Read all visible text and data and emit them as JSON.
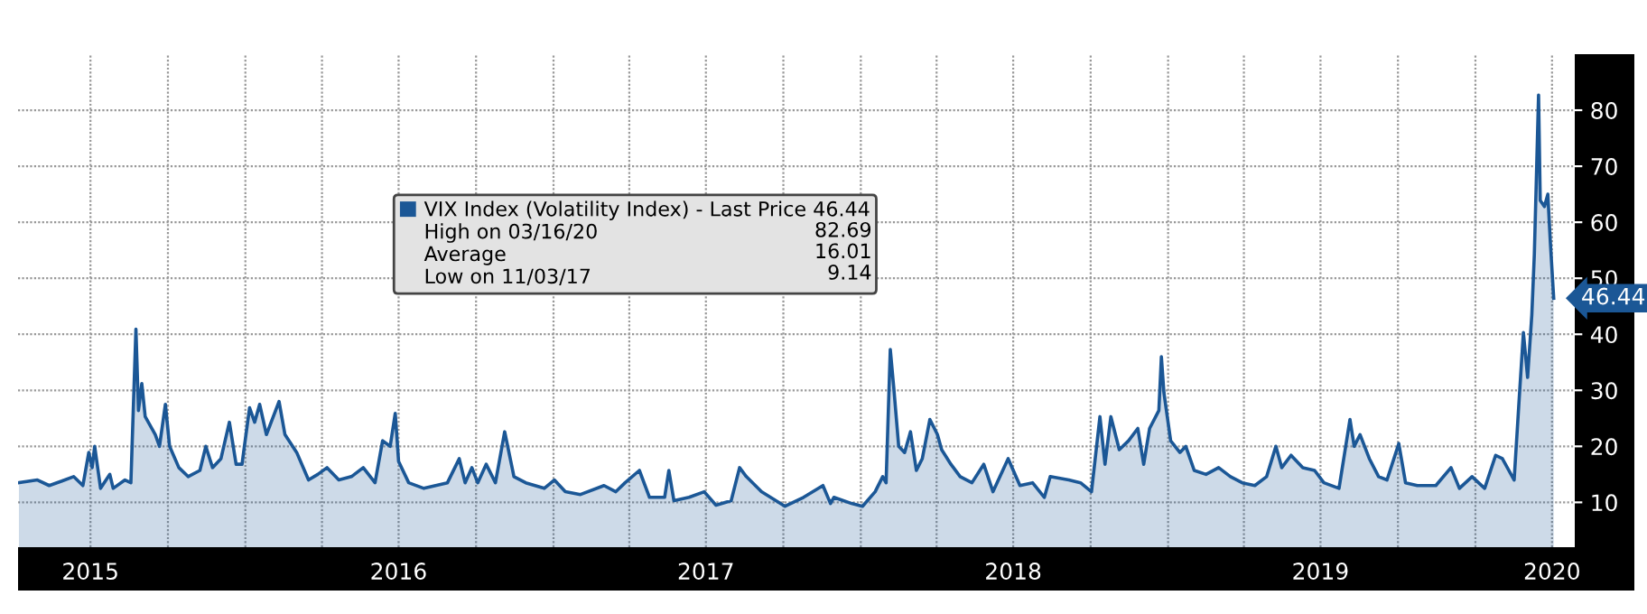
{
  "chart_data": {
    "type": "area",
    "series": [
      {
        "name": "VIX Index (Volatility Index) - Last Price 46.44",
        "color": "#1b5796",
        "x": [
          "2015-04-07",
          "2015-04-29",
          "2015-05-13",
          "2015-05-28",
          "2015-06-11",
          "2015-06-22",
          "2015-06-29",
          "2015-07-03",
          "2015-07-06",
          "2015-07-13",
          "2015-07-24",
          "2015-07-28",
          "2015-08-11",
          "2015-08-18",
          "2015-08-24",
          "2015-08-27",
          "2015-08-31",
          "2015-09-04",
          "2015-09-16",
          "2015-09-21",
          "2015-09-28",
          "2015-10-03",
          "2015-10-14",
          "2015-10-25",
          "2015-11-08",
          "2015-11-15",
          "2015-11-23",
          "2015-12-03",
          "2015-12-13",
          "2015-12-21",
          "2015-12-28",
          "2016-01-06",
          "2016-01-12",
          "2016-01-18",
          "2016-01-26",
          "2016-02-10",
          "2016-02-17",
          "2016-03-02",
          "2016-03-16",
          "2016-03-27",
          "2016-04-07",
          "2016-04-21",
          "2016-05-06",
          "2016-05-20",
          "2016-06-03",
          "2016-06-12",
          "2016-06-21",
          "2016-06-27",
          "2016-07-01",
          "2016-07-13",
          "2016-07-31",
          "2016-08-14",
          "2016-08-28",
          "2016-09-11",
          "2016-09-18",
          "2016-09-26",
          "2016-10-03",
          "2016-10-13",
          "2016-10-24",
          "2016-11-04",
          "2016-11-15",
          "2016-11-29",
          "2016-12-21",
          "2017-01-02",
          "2017-01-15",
          "2017-02-02",
          "2017-03-02",
          "2017-03-16",
          "2017-03-27",
          "2017-04-13",
          "2017-04-25",
          "2017-05-13",
          "2017-05-18",
          "2017-05-24",
          "2017-06-11",
          "2017-06-29",
          "2017-07-13",
          "2017-07-31",
          "2017-08-10",
          "2017-08-18",
          "2017-09-05",
          "2017-10-03",
          "2017-10-25",
          "2017-11-17",
          "2017-11-26",
          "2017-11-30",
          "2017-12-21",
          "2018-01-03",
          "2018-01-18",
          "2018-01-27",
          "2018-01-31",
          "2018-02-05",
          "2018-02-09",
          "2018-02-15",
          "2018-02-22",
          "2018-03-01",
          "2018-03-08",
          "2018-03-15",
          "2018-03-24",
          "2018-04-02",
          "2018-04-07",
          "2018-04-18",
          "2018-04-29",
          "2018-05-13",
          "2018-05-27",
          "2018-06-07",
          "2018-06-25",
          "2018-07-09",
          "2018-07-24",
          "2018-08-07",
          "2018-08-14",
          "2018-09-05",
          "2018-09-19",
          "2018-10-02",
          "2018-10-12",
          "2018-10-18",
          "2018-10-25",
          "2018-11-04",
          "2018-11-15",
          "2018-11-26",
          "2018-12-03",
          "2018-12-10",
          "2018-12-21",
          "2018-12-24",
          "2018-12-27",
          "2019-01-04",
          "2019-01-15",
          "2019-01-22",
          "2019-02-01",
          "2019-02-15",
          "2019-03-02",
          "2019-03-16",
          "2019-03-30",
          "2019-04-14",
          "2019-04-28",
          "2019-05-09",
          "2019-05-16",
          "2019-05-27",
          "2019-06-10",
          "2019-06-24",
          "2019-07-05",
          "2019-07-23",
          "2019-08-05",
          "2019-08-10",
          "2019-08-17",
          "2019-08-28",
          "2019-09-08",
          "2019-09-18",
          "2019-10-02",
          "2019-10-10",
          "2019-10-24",
          "2019-11-15",
          "2019-12-03",
          "2019-12-13",
          "2019-12-28",
          "2020-01-12",
          "2020-01-25",
          "2020-02-02",
          "2020-02-16",
          "2020-02-22",
          "2020-02-27",
          "2020-03-03",
          "2020-03-08",
          "2020-03-11",
          "2020-03-16",
          "2020-03-18",
          "2020-03-23",
          "2020-03-27",
          "2020-03-30",
          "2020-04-03"
        ],
        "values": [
          13.5,
          14,
          13,
          13.8,
          14.6,
          13,
          18.9,
          16.2,
          20,
          12.5,
          15,
          12.5,
          14,
          13.5,
          40.9,
          26.4,
          31.2,
          25.3,
          22.1,
          20,
          27.5,
          20,
          16.2,
          14.6,
          15.7,
          20,
          16.2,
          17.8,
          24.3,
          16.8,
          16.8,
          26.9,
          24.3,
          27.5,
          22.1,
          28,
          22.1,
          18.9,
          14,
          15,
          16.2,
          14,
          14.6,
          16.2,
          13.5,
          21,
          20,
          25.9,
          17.3,
          13.5,
          12.5,
          13,
          13.5,
          17.8,
          13.5,
          16.2,
          13.5,
          16.8,
          13.5,
          22.6,
          14.6,
          13.5,
          12.5,
          14,
          11.9,
          11.4,
          13,
          11.9,
          13.5,
          15.7,
          10.9,
          10.9,
          15.7,
          10.3,
          10.9,
          11.9,
          9.5,
          10.3,
          16.2,
          14.6,
          11.9,
          9.3,
          10.9,
          13,
          9.8,
          10.9,
          9.8,
          9.3,
          11.9,
          14.6,
          13.5,
          37.3,
          30.7,
          20,
          18.9,
          22.6,
          15.7,
          17.8,
          24.8,
          22.1,
          19.4,
          16.8,
          14.6,
          13.5,
          16.8,
          11.9,
          17.8,
          13,
          13.5,
          10.9,
          14.6,
          14,
          13.5,
          11.9,
          25.3,
          16.8,
          25.3,
          19.4,
          21,
          23.2,
          16.8,
          23.2,
          26.4,
          36,
          29.6,
          21,
          18.9,
          20,
          15.7,
          15,
          16.2,
          14.6,
          13.5,
          13,
          14.6,
          20,
          16.2,
          18.4,
          16.2,
          15.7,
          13.5,
          12.5,
          24.8,
          20,
          22.1,
          17.8,
          14.6,
          14,
          20.5,
          13.5,
          13,
          13,
          16.2,
          12.5,
          14.6,
          12.5,
          18.4,
          17.8,
          14,
          28.5,
          40.3,
          32.3,
          43.5,
          54.3,
          82.69,
          63.9,
          62.8,
          65,
          56.4,
          46.44
        ]
      }
    ],
    "xlim": [
      "2015-04-06",
      "2020-04-28"
    ],
    "ylim": [
      2,
      90
    ],
    "yticks": [
      10,
      20,
      30,
      40,
      50,
      60,
      70,
      80
    ],
    "xticks": [
      {
        "value": "2015-07-01",
        "label": "2015"
      },
      {
        "value": "2015-10-01",
        "label": null
      },
      {
        "value": "2016-01-01",
        "label": null
      },
      {
        "value": "2016-04-01",
        "label": null
      },
      {
        "value": "2016-07-01",
        "label": "2016"
      },
      {
        "value": "2016-10-01",
        "label": null
      },
      {
        "value": "2017-01-01",
        "label": null
      },
      {
        "value": "2017-04-01",
        "label": null
      },
      {
        "value": "2017-07-01",
        "label": "2017"
      },
      {
        "value": "2017-10-01",
        "label": null
      },
      {
        "value": "2018-01-01",
        "label": null
      },
      {
        "value": "2018-04-01",
        "label": null
      },
      {
        "value": "2018-07-01",
        "label": "2018"
      },
      {
        "value": "2018-10-01",
        "label": null
      },
      {
        "value": "2019-01-01",
        "label": null
      },
      {
        "value": "2019-04-01",
        "label": null
      },
      {
        "value": "2019-07-01",
        "label": "2019"
      },
      {
        "value": "2019-10-01",
        "label": null
      },
      {
        "value": "2020-01-01",
        "label": null
      },
      {
        "value": "2020-04-01",
        "label": "2020"
      }
    ],
    "grid": true,
    "legend": "top",
    "annotations": [
      "High on 03/16/20",
      "82.69",
      "Average",
      "16.01",
      "Low on 11/03/17",
      "9.14",
      {
        "text": "46.44",
        "x": "2020-04-03",
        "y": 46.44
      }
    ]
  }
}
